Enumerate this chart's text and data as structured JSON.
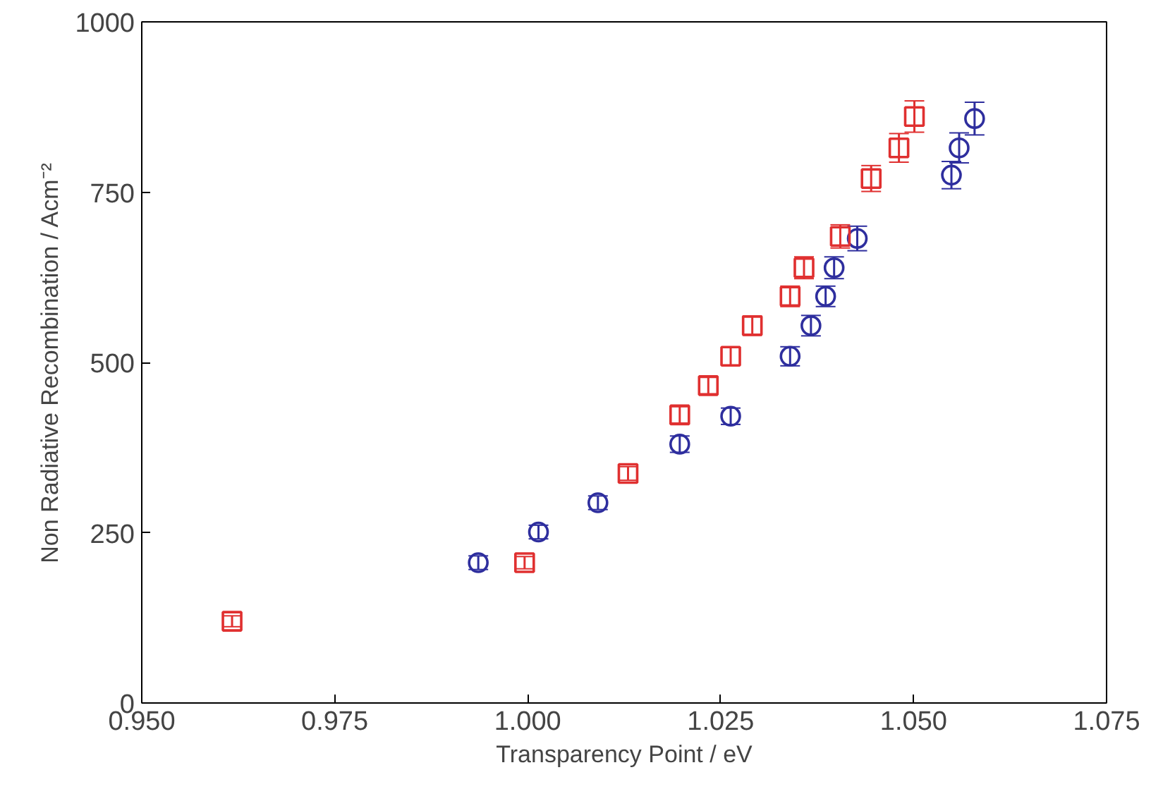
{
  "chart_data": {
    "type": "scatter",
    "xlabel": "Transparency Point / eV",
    "ylabel": "Non Radiative Recombination / Acm⁻²",
    "xlim": [
      0.95,
      1.075
    ],
    "ylim": [
      0,
      1000
    ],
    "xticks": [
      {
        "value": 0.95,
        "label": "0.950"
      },
      {
        "value": 0.975,
        "label": "0.975"
      },
      {
        "value": 1.0,
        "label": "1.000"
      },
      {
        "value": 1.025,
        "label": "1.025"
      },
      {
        "value": 1.05,
        "label": "1.050"
      },
      {
        "value": 1.075,
        "label": "1.075"
      }
    ],
    "yticks": [
      0,
      250,
      500,
      750,
      1000
    ],
    "grid": false,
    "series": [
      {
        "color": "#2e2e9e",
        "marker": "circle",
        "x": [
          0.9936,
          1.0014,
          1.0091,
          1.0197,
          1.0263,
          1.034,
          1.0367,
          1.0386,
          1.0397,
          1.0427,
          1.0549,
          1.0559,
          1.0579
        ],
        "values": [
          206,
          251,
          294,
          380,
          421,
          509,
          554,
          597,
          639,
          682,
          775,
          815,
          858
        ],
        "errors": [
          10,
          10,
          10,
          12,
          12,
          14,
          15,
          15,
          16,
          18,
          20,
          22,
          24
        ]
      },
      {
        "color": "#e03030",
        "marker": "square",
        "x": [
          0.9617,
          0.9996,
          1.013,
          1.0197,
          1.0234,
          1.0263,
          1.0291,
          1.034,
          1.0358,
          1.0405,
          1.0445,
          1.0481,
          1.0501
        ],
        "values": [
          120,
          206,
          337,
          423,
          466,
          509,
          554,
          597,
          639,
          685,
          770,
          815,
          861
        ],
        "errors": [
          8,
          9,
          10,
          12,
          12,
          13,
          14,
          15,
          16,
          17,
          19,
          21,
          23
        ]
      }
    ]
  }
}
